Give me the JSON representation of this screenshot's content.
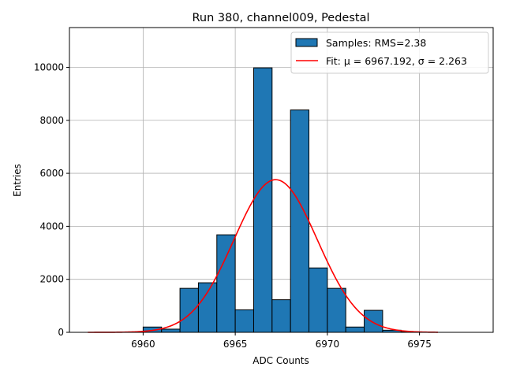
{
  "chart_data": {
    "type": "bar",
    "title": "Run 380, channel009, Pedestal",
    "xlabel": "ADC Counts",
    "ylabel": "Entries",
    "xlim": [
      6956,
      6979
    ],
    "ylim": [
      0,
      11500
    ],
    "xticks": [
      6960,
      6965,
      6970,
      6975
    ],
    "yticks": [
      0,
      2000,
      4000,
      6000,
      8000,
      10000
    ],
    "grid": true,
    "legend_position": "top-right",
    "histogram": {
      "name": "Samples: RMS=2.38",
      "color": "#1f77b4",
      "edgecolor": "#000000",
      "bins": [
        {
          "x0": 6960.0,
          "x1": 6961.0,
          "count": 200
        },
        {
          "x0": 6961.0,
          "x1": 6962.0,
          "count": 120
        },
        {
          "x0": 6962.0,
          "x1": 6963.0,
          "count": 1660
        },
        {
          "x0": 6963.0,
          "x1": 6964.0,
          "count": 1870
        },
        {
          "x0": 6964.0,
          "x1": 6965.0,
          "count": 3680
        },
        {
          "x0": 6965.0,
          "x1": 6966.0,
          "count": 850
        },
        {
          "x0": 6966.0,
          "x1": 6967.0,
          "count": 9980
        },
        {
          "x0": 6967.0,
          "x1": 6968.0,
          "count": 1230
        },
        {
          "x0": 6968.0,
          "x1": 6969.0,
          "count": 8390
        },
        {
          "x0": 6969.0,
          "x1": 6970.0,
          "count": 2430
        },
        {
          "x0": 6970.0,
          "x1": 6971.0,
          "count": 1660
        },
        {
          "x0": 6971.0,
          "x1": 6972.0,
          "count": 200
        },
        {
          "x0": 6972.0,
          "x1": 6973.0,
          "count": 830
        },
        {
          "x0": 6973.0,
          "x1": 6974.0,
          "count": 80
        },
        {
          "x0": 6974.0,
          "x1": 6975.0,
          "count": 20
        }
      ]
    },
    "fit": {
      "label": "Fit: μ = 6967.192, σ = 2.263",
      "mu": 6967.192,
      "sigma": 2.263,
      "amplitude": 5760,
      "x_range": [
        6957,
        6976
      ],
      "color": "#ff0000"
    }
  }
}
